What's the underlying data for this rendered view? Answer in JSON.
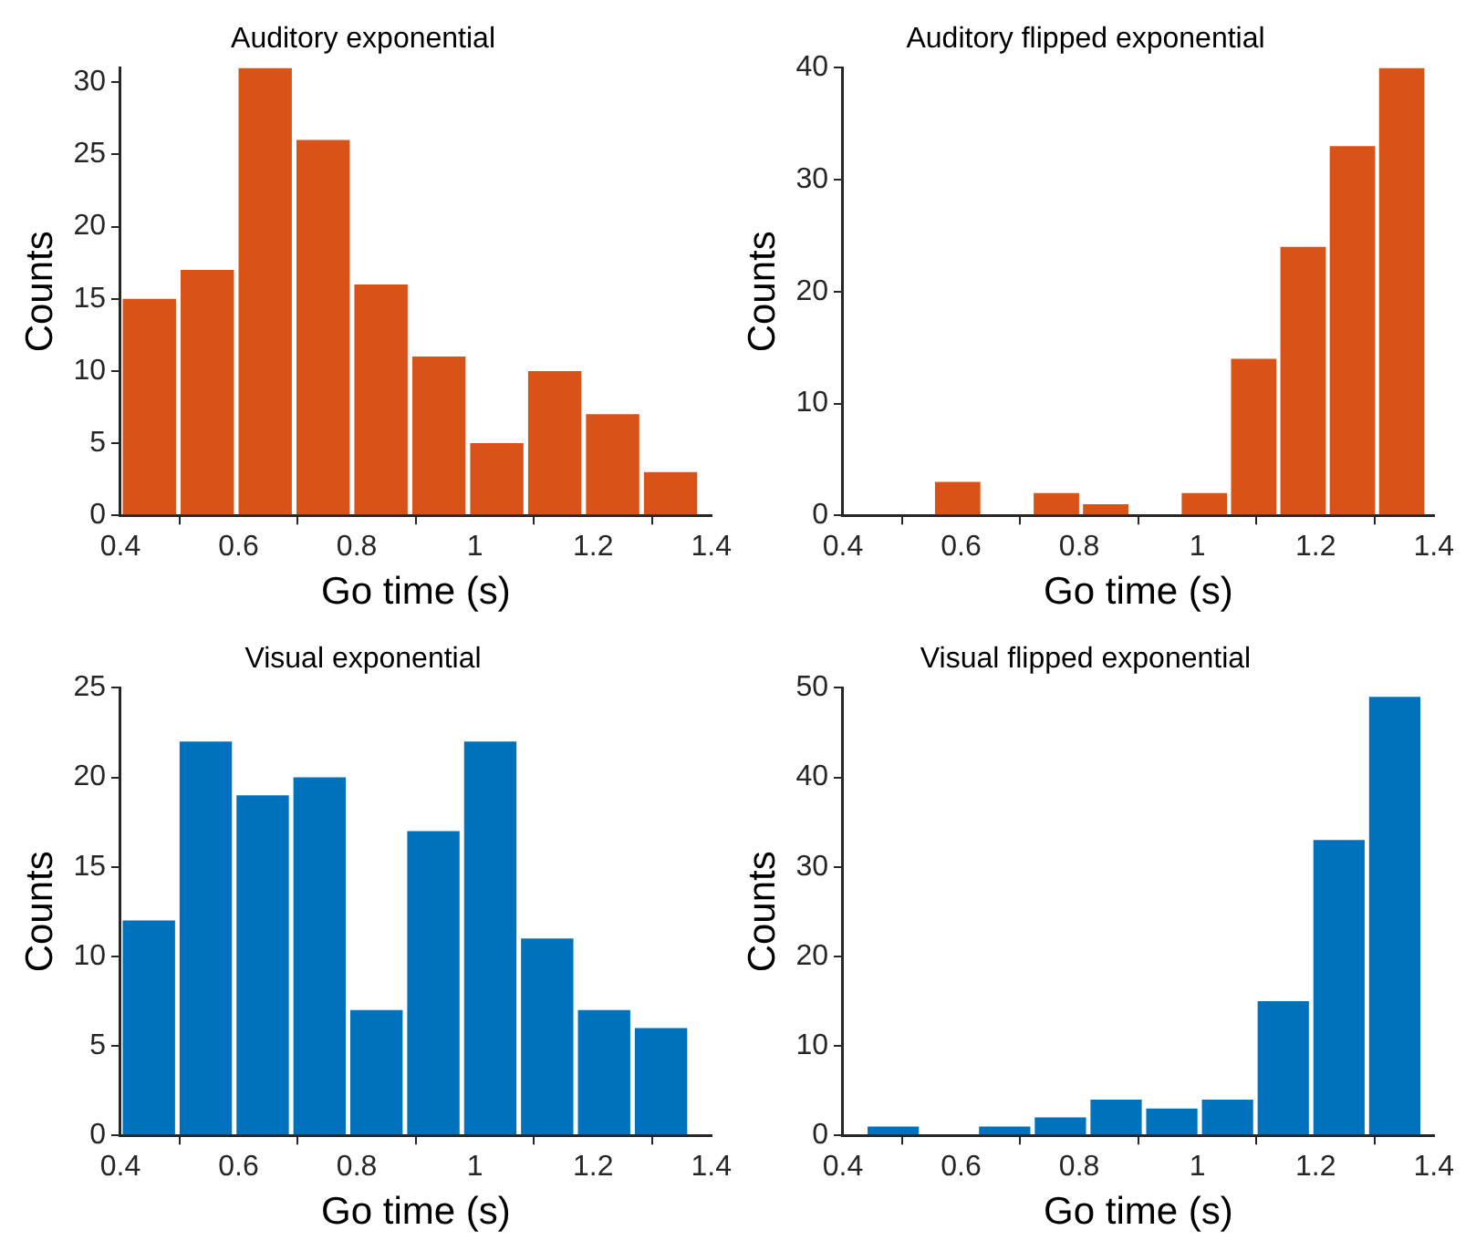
{
  "chart_data": [
    {
      "type": "histogram",
      "title": "Auditory exponential",
      "xlabel": "Go time (s)",
      "ylabel": "Counts",
      "color": "#d95319",
      "bins": [
        0.4,
        0.498,
        0.596,
        0.694,
        0.792,
        0.89,
        0.988,
        1.086,
        1.184,
        1.282,
        1.38
      ],
      "values": [
        15,
        17,
        31,
        26,
        16,
        11,
        5,
        10,
        7,
        3
      ],
      "xlim": [
        0.4,
        1.4
      ],
      "xticks": [
        0.4,
        0.6,
        0.8,
        1,
        1.2,
        1.4
      ],
      "ylim": [
        0,
        31
      ],
      "yticks": [
        0,
        5,
        10,
        15,
        20,
        25,
        30
      ]
    },
    {
      "type": "histogram",
      "title": "Auditory flipped exponential",
      "xlabel": "Go time (s)",
      "ylabel": "Counts",
      "color": "#d95319",
      "bins": [
        0.469,
        0.5525,
        0.636,
        0.7195,
        0.803,
        0.8865,
        0.97,
        1.0535,
        1.137,
        1.2205,
        1.304,
        1.3875
      ],
      "values": [
        0,
        3,
        0,
        2,
        1,
        0,
        2,
        14,
        24,
        33,
        40
      ],
      "xlim": [
        0.4,
        1.4
      ],
      "xticks": [
        0.4,
        0.6,
        0.8,
        1,
        1.2,
        1.4
      ],
      "ylim": [
        0,
        40
      ],
      "yticks": [
        0,
        10,
        20,
        30,
        40
      ]
    },
    {
      "type": "histogram",
      "title": "Visual exponential",
      "xlabel": "Go time (s)",
      "ylabel": "Counts",
      "color": "#0072bd",
      "bins": [
        0.4,
        0.4963,
        0.5926,
        0.6889,
        0.7852,
        0.8815,
        0.9778,
        1.0741,
        1.1704,
        1.2667,
        1.363
      ],
      "values": [
        12,
        22,
        19,
        20,
        7,
        17,
        22,
        11,
        7,
        6
      ],
      "xlim": [
        0.4,
        1.4
      ],
      "xticks": [
        0.4,
        0.6,
        0.8,
        1,
        1.2,
        1.4
      ],
      "ylim": [
        0,
        25
      ],
      "yticks": [
        0,
        5,
        10,
        15,
        20,
        25
      ]
    },
    {
      "type": "histogram",
      "title": "Visual flipped exponential",
      "xlabel": "Go time (s)",
      "ylabel": "Counts",
      "color": "#0072bd",
      "bins": [
        0.438,
        0.5323,
        0.6266,
        0.7209,
        0.8152,
        0.9095,
        1.0038,
        1.0981,
        1.1924,
        1.2867,
        1.381
      ],
      "values": [
        1,
        0,
        1,
        2,
        4,
        3,
        4,
        15,
        33,
        49
      ],
      "xlim": [
        0.4,
        1.4
      ],
      "xticks": [
        0.4,
        0.6,
        0.8,
        1,
        1.2,
        1.4
      ],
      "ylim": [
        0,
        50
      ],
      "yticks": [
        0,
        10,
        20,
        30,
        40,
        50
      ]
    }
  ]
}
